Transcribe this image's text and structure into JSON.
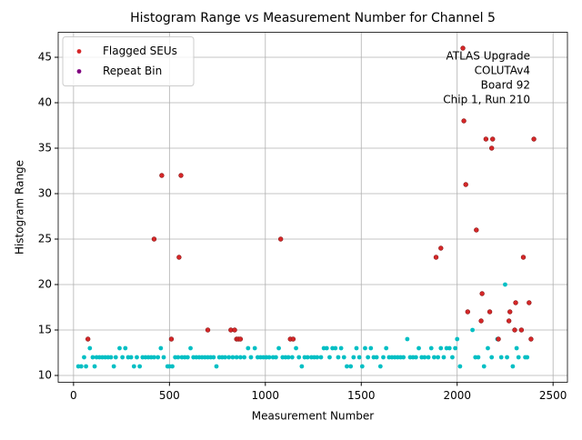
{
  "chart_data": {
    "type": "scatter",
    "title": "Histogram Range vs Measurement Number for Channel 5",
    "x_label": "Measurement Number",
    "y_label": "Histogram Range",
    "annotation": [
      "ATLAS Upgrade",
      "COLUTAv4",
      "Board 92",
      "Chip 1, Run 210"
    ],
    "xlim": [
      -80,
      2575
    ],
    "ylim": [
      9.25,
      47.75
    ],
    "xticks": [
      0,
      500,
      1000,
      1500,
      2000,
      2500
    ],
    "yticks": [
      10,
      15,
      20,
      25,
      30,
      35,
      40,
      45
    ],
    "grid": true,
    "legend": "upper left",
    "series": [
      {
        "color": "#00bfc4",
        "x": [
          25,
          40,
          55,
          65,
          85,
          100,
          110,
          120,
          135,
          150,
          165,
          180,
          195,
          210,
          220,
          240,
          255,
          270,
          285,
          300,
          315,
          330,
          345,
          360,
          375,
          390,
          405,
          420,
          440,
          455,
          470,
          490,
          500,
          515,
          530,
          545,
          565,
          580,
          595,
          610,
          625,
          640,
          655,
          670,
          685,
          700,
          715,
          730,
          745,
          760,
          775,
          790,
          810,
          830,
          850,
          870,
          890,
          910,
          925,
          945,
          960,
          975,
          990,
          1005,
          1020,
          1040,
          1055,
          1070,
          1090,
          1105,
          1120,
          1140,
          1160,
          1175,
          1190,
          1205,
          1220,
          1240,
          1255,
          1270,
          1290,
          1305,
          1320,
          1335,
          1350,
          1365,
          1380,
          1395,
          1410,
          1425,
          1445,
          1460,
          1475,
          1490,
          1505,
          1520,
          1535,
          1550,
          1565,
          1580,
          1600,
          1615,
          1630,
          1645,
          1660,
          1675,
          1690,
          1705,
          1720,
          1740,
          1755,
          1770,
          1785,
          1800,
          1815,
          1830,
          1850,
          1865,
          1880,
          1900,
          1915,
          1930,
          1945,
          1960,
          1975,
          1990,
          2000,
          2015,
          2080,
          2095,
          2110,
          2140,
          2160,
          2180,
          2210,
          2230,
          2250,
          2260,
          2290,
          2310,
          2320,
          2355,
          2365
        ],
        "values": [
          11,
          11,
          12,
          11,
          13,
          12,
          11,
          12,
          12,
          12,
          12,
          12,
          12,
          11,
          12,
          13,
          12,
          13,
          12,
          12,
          11,
          12,
          11,
          12,
          12,
          12,
          12,
          12,
          12,
          13,
          12,
          11,
          11,
          11,
          12,
          12,
          12,
          12,
          12,
          13,
          12,
          12,
          12,
          12,
          12,
          12,
          12,
          12,
          11,
          12,
          12,
          12,
          12,
          12,
          12,
          12,
          12,
          13,
          12,
          13,
          12,
          12,
          12,
          12,
          12,
          12,
          12,
          13,
          12,
          12,
          12,
          12,
          13,
          12,
          11,
          12,
          12,
          12,
          12,
          12,
          12,
          13,
          13,
          12,
          13,
          13,
          12,
          13,
          12,
          11,
          11,
          12,
          13,
          12,
          11,
          13,
          12,
          13,
          12,
          12,
          11,
          12,
          13,
          12,
          12,
          12,
          12,
          12,
          12,
          14,
          12,
          12,
          12,
          13,
          12,
          12,
          12,
          13,
          12,
          12,
          13,
          12,
          13,
          13,
          12,
          13,
          14,
          11,
          15,
          12,
          12,
          11,
          13,
          12,
          14,
          12,
          20,
          12,
          11,
          13,
          12,
          12,
          12
        ]
      },
      {
        "name": "Flagged SEUs",
        "color": "#d62728",
        "x": [
          75,
          420,
          460,
          510,
          550,
          560,
          700,
          820,
          840,
          850,
          860,
          870,
          1080,
          1130,
          1145,
          1890,
          1915,
          2030,
          2035,
          2045,
          2055,
          2100,
          2125,
          2130,
          2150,
          2170,
          2180,
          2185,
          2215,
          2270,
          2275,
          2300,
          2305,
          2335,
          2345,
          2375,
          2385,
          2400
        ],
        "values": [
          14,
          25,
          32,
          14,
          23,
          32,
          15,
          15,
          15,
          14,
          14,
          14,
          25,
          14,
          14,
          23,
          24,
          46,
          38,
          31,
          17,
          26,
          16,
          19,
          36,
          17,
          35,
          36,
          14,
          16,
          17,
          15,
          18,
          15,
          23,
          18,
          14,
          36
        ]
      },
      {
        "name": "Repeat Bin",
        "color": "#800080",
        "x": [],
        "values": []
      }
    ]
  }
}
